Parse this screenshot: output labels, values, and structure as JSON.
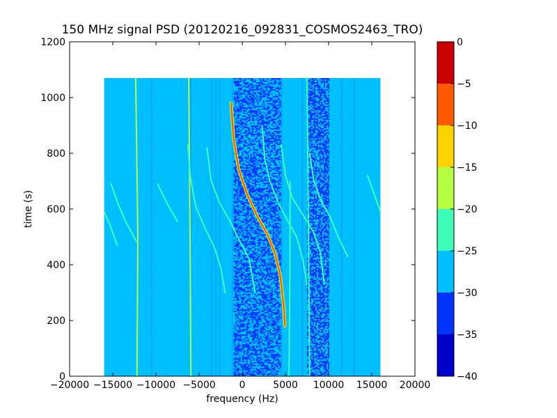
{
  "chart_data": {
    "type": "heatmap",
    "title": "150 MHz signal PSD (20120216_092831_COSMOS2463_TRO)",
    "xlabel": "frequency (Hz)",
    "ylabel": "time (s)",
    "xlim": [
      -20000,
      20000
    ],
    "ylim": [
      0,
      1200
    ],
    "xticks": [
      {
        "value": -20000,
        "label": "−20000"
      },
      {
        "value": -15000,
        "label": "−15000"
      },
      {
        "value": -10000,
        "label": "−10000"
      },
      {
        "value": -5000,
        "label": "−5000"
      },
      {
        "value": 0,
        "label": "0"
      },
      {
        "value": 5000,
        "label": "5000"
      },
      {
        "value": 10000,
        "label": "10000"
      },
      {
        "value": 15000,
        "label": "15000"
      },
      {
        "value": 20000,
        "label": "20000"
      }
    ],
    "yticks": [
      {
        "value": 0,
        "label": "0"
      },
      {
        "value": 200,
        "label": "200"
      },
      {
        "value": 400,
        "label": "400"
      },
      {
        "value": 600,
        "label": "600"
      },
      {
        "value": 800,
        "label": "800"
      },
      {
        "value": 1000,
        "label": "1000"
      },
      {
        "value": 1200,
        "label": "1200"
      }
    ],
    "data_extent": {
      "freq_min": -16000,
      "freq_max": 16000,
      "time_min": 0,
      "time_max": 1070
    },
    "colorbar": {
      "range": [
        -40,
        0
      ],
      "levels": [
        {
          "from": -40,
          "to": -35,
          "color": "#0000cd"
        },
        {
          "from": -35,
          "to": -30,
          "color": "#0033ff"
        },
        {
          "from": -30,
          "to": -25,
          "color": "#00bfff"
        },
        {
          "from": -25,
          "to": -20,
          "color": "#3dffb8"
        },
        {
          "from": -20,
          "to": -15,
          "color": "#b5ff42"
        },
        {
          "from": -15,
          "to": -10,
          "color": "#ffd300"
        },
        {
          "from": -10,
          "to": -5,
          "color": "#ff5a00"
        },
        {
          "from": -5,
          "to": 0,
          "color": "#cd0000"
        }
      ],
      "ticks": [
        {
          "value": 0,
          "label": "0"
        },
        {
          "value": -5,
          "label": "−5"
        },
        {
          "value": -10,
          "label": "−10"
        },
        {
          "value": -15,
          "label": "−15"
        },
        {
          "value": -20,
          "label": "−20"
        },
        {
          "value": -25,
          "label": "−25"
        },
        {
          "value": -30,
          "label": "−30"
        },
        {
          "value": -35,
          "label": "−35"
        },
        {
          "value": -40,
          "label": "−40"
        }
      ]
    },
    "background_level": -27.5,
    "noisy_bands": [
      {
        "freq_start": -11500,
        "freq_end": -6500,
        "level": -30,
        "density": 0.15
      },
      {
        "freq_start": -6500,
        "freq_end": -1000,
        "level": -30,
        "density": 0.22
      },
      {
        "freq_start": -1000,
        "freq_end": 4500,
        "level": -32,
        "density": 0.55
      },
      {
        "freq_start": 4500,
        "freq_end": 7500,
        "level": -30,
        "density": 0.4
      },
      {
        "freq_start": 7500,
        "freq_end": 10000,
        "level": -33,
        "density": 0.6
      },
      {
        "freq_start": 10000,
        "freq_end": 13000,
        "level": -30,
        "density": 0.12
      }
    ],
    "series": [
      {
        "type": "vertical",
        "level": -20,
        "points": [
          [
            -12200,
            0
          ],
          [
            -12100,
            500
          ],
          [
            -12350,
            1070
          ]
        ]
      },
      {
        "type": "vertical",
        "level": -17,
        "points": [
          [
            -5950,
            0
          ],
          [
            -6050,
            500
          ],
          [
            -6200,
            1070
          ]
        ]
      },
      {
        "type": "vertical",
        "level": -22,
        "points": [
          [
            5400,
            0
          ],
          [
            5500,
            300
          ],
          [
            5550,
            700
          ]
        ]
      },
      {
        "type": "vertical",
        "level": -22,
        "points": [
          [
            7800,
            0
          ],
          [
            7700,
            400
          ],
          [
            7500,
            1070
          ]
        ]
      },
      {
        "type": "sweep",
        "level": -22,
        "points": [
          [
            -15200,
            690
          ],
          [
            -14400,
            620
          ],
          [
            -13600,
            560
          ],
          [
            -12200,
            480
          ]
        ]
      },
      {
        "type": "sweep",
        "level": -22,
        "points": [
          [
            -16000,
            590
          ],
          [
            -15300,
            540
          ],
          [
            -14500,
            470
          ]
        ]
      },
      {
        "type": "sweep",
        "level": -24,
        "points": [
          [
            -9800,
            690
          ],
          [
            -8700,
            620
          ],
          [
            -7500,
            555
          ]
        ]
      },
      {
        "type": "sweep",
        "level": -23,
        "points": [
          [
            -6300,
            830
          ],
          [
            -6000,
            710
          ],
          [
            -5400,
            610
          ],
          [
            -4300,
            530
          ],
          [
            -3200,
            460
          ],
          [
            -2500,
            390
          ],
          [
            -2000,
            300
          ]
        ]
      },
      {
        "type": "sweep",
        "level": -22,
        "points": [
          [
            -4100,
            820
          ],
          [
            -3600,
            700
          ],
          [
            -2600,
            620
          ],
          [
            -1400,
            555
          ],
          [
            -200,
            480
          ],
          [
            800,
            420
          ],
          [
            1500,
            300
          ]
        ]
      },
      {
        "type": "sweep",
        "level": -8,
        "points": [
          [
            -1300,
            980
          ],
          [
            -1000,
            850
          ],
          [
            -400,
            740
          ],
          [
            600,
            650
          ],
          [
            1800,
            570
          ],
          [
            2900,
            510
          ],
          [
            3800,
            440
          ],
          [
            4400,
            360
          ],
          [
            4800,
            250
          ],
          [
            4950,
            180
          ]
        ]
      },
      {
        "type": "sweep",
        "level": -22,
        "points": [
          [
            2300,
            900
          ],
          [
            2600,
            780
          ],
          [
            3200,
            700
          ],
          [
            4200,
            620
          ],
          [
            5300,
            555
          ],
          [
            6300,
            500
          ],
          [
            7000,
            420
          ],
          [
            7500,
            330
          ]
        ]
      },
      {
        "type": "sweep",
        "level": -22,
        "points": [
          [
            4500,
            830
          ],
          [
            5000,
            720
          ],
          [
            5800,
            640
          ],
          [
            7000,
            580
          ],
          [
            8200,
            520
          ],
          [
            9000,
            450
          ],
          [
            9500,
            330
          ]
        ]
      },
      {
        "type": "sweep",
        "level": -24,
        "points": [
          [
            7800,
            800
          ],
          [
            8300,
            700
          ],
          [
            9100,
            630
          ],
          [
            10200,
            570
          ],
          [
            11100,
            500
          ],
          [
            12200,
            430
          ]
        ]
      },
      {
        "type": "sweep",
        "level": -22,
        "points": [
          [
            14500,
            720
          ],
          [
            15200,
            660
          ],
          [
            16000,
            590
          ]
        ]
      }
    ]
  }
}
